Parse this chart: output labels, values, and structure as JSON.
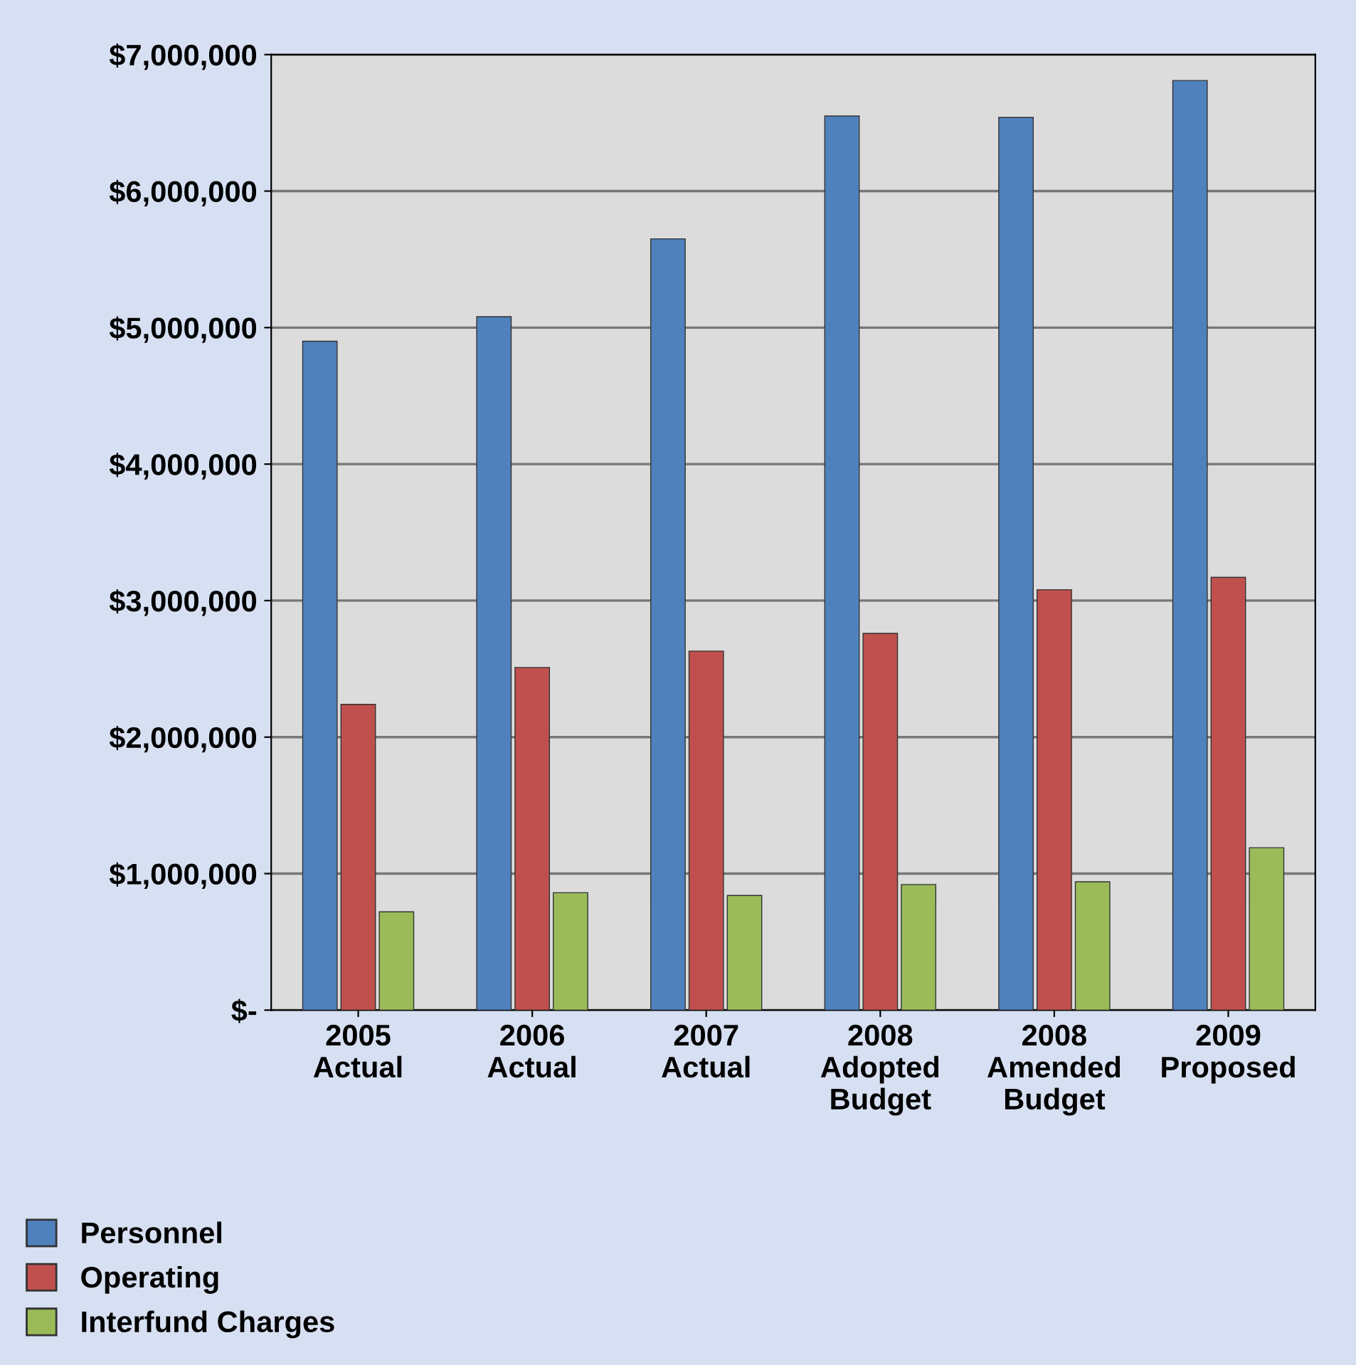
{
  "chart_data": {
    "type": "bar",
    "categories": [
      "2005\nActual",
      "2006\nActual",
      "2007\nActual",
      "2008\nAdopted\nBudget",
      "2008\nAmended\nBudget",
      "2009\nProposed"
    ],
    "series": [
      {
        "name": "Personnel",
        "color": "#4f81bd",
        "values": [
          4900000,
          5080000,
          5650000,
          6550000,
          6540000,
          6810000
        ]
      },
      {
        "name": "Operating",
        "color": "#c0504d",
        "values": [
          2240000,
          2510000,
          2630000,
          2760000,
          3080000,
          3170000
        ]
      },
      {
        "name": "Interfund Charges",
        "color": "#9bbb59",
        "values": [
          720000,
          860000,
          840000,
          920000,
          940000,
          1190000
        ]
      }
    ],
    "ylim": [
      0,
      7000000
    ],
    "yticks": [
      {
        "value": 0,
        "label": "$-"
      },
      {
        "value": 1000000,
        "label": "$1,000,000"
      },
      {
        "value": 2000000,
        "label": "$2,000,000"
      },
      {
        "value": 3000000,
        "label": "$3,000,000"
      },
      {
        "value": 4000000,
        "label": "$4,000,000"
      },
      {
        "value": 5000000,
        "label": "$5,000,000"
      },
      {
        "value": 6000000,
        "label": "$6,000,000"
      },
      {
        "value": 7000000,
        "label": "$7,000,000"
      }
    ],
    "grid": "y",
    "legend": "bottom left"
  }
}
